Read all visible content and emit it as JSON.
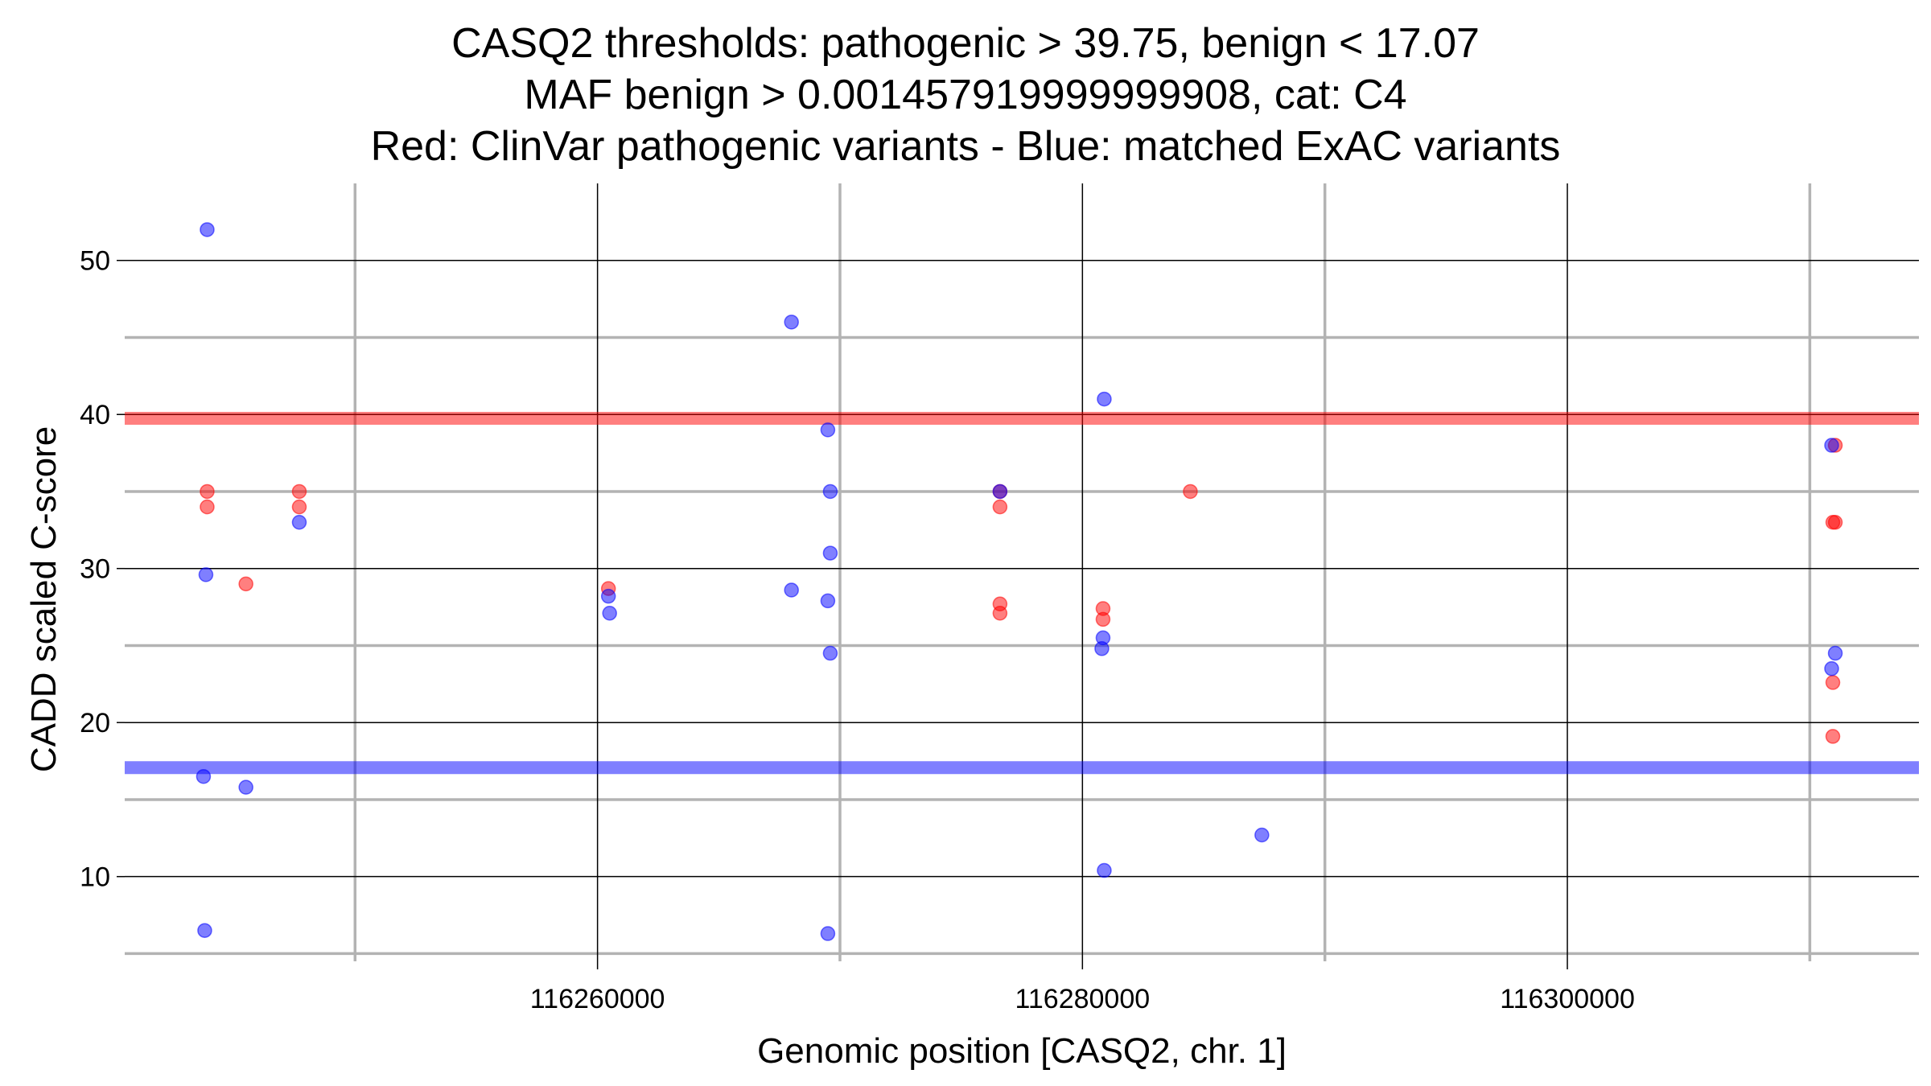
{
  "chart_data": {
    "type": "scatter",
    "title_lines": [
      "CASQ2 thresholds: pathogenic > 39.75, benign < 17.07",
      "MAF benign > 0.001457919999999908, cat: C4",
      "Red: ClinVar pathogenic variants - Blue: matched ExAC variants"
    ],
    "xlabel": "Genomic position [CASQ2, chr. 1]",
    "ylabel": "CADD scaled C-score",
    "xlim": [
      116240500,
      116314500
    ],
    "ylim": [
      4.5,
      55
    ],
    "x_major_ticks": [
      116260000,
      116280000,
      116300000
    ],
    "x_minor_ticks": [
      116250000,
      116270000,
      116290000,
      116310000
    ],
    "y_major_ticks": [
      10,
      20,
      30,
      40,
      50
    ],
    "y_minor_ticks": [
      5,
      15,
      25,
      35,
      45
    ],
    "x_tick_labels": [
      "116260000",
      "116280000",
      "116300000"
    ],
    "y_tick_labels": [
      "10",
      "20",
      "30",
      "40",
      "50"
    ],
    "thresholds": [
      {
        "name": "pathogenic",
        "value": 39.75,
        "color": "#ff0000"
      },
      {
        "name": "benign",
        "value": 17.07,
        "color": "#0000ff"
      }
    ],
    "colors": {
      "pathogenic": "#ff0000",
      "benign": "#0000ff",
      "major_grid": "#000000",
      "minor_grid": "#b3b3b3"
    },
    "series": [
      {
        "name": "ClinVar pathogenic variants",
        "color": "#ff0000",
        "points": [
          {
            "x": 116243900,
            "y": 35
          },
          {
            "x": 116243900,
            "y": 34
          },
          {
            "x": 116245500,
            "y": 29
          },
          {
            "x": 116247700,
            "y": 35
          },
          {
            "x": 116247700,
            "y": 34
          },
          {
            "x": 116260450,
            "y": 28.7
          },
          {
            "x": 116276600,
            "y": 35
          },
          {
            "x": 116276600,
            "y": 34
          },
          {
            "x": 116276600,
            "y": 27.7
          },
          {
            "x": 116276600,
            "y": 27.1
          },
          {
            "x": 116280850,
            "y": 27.4
          },
          {
            "x": 116280850,
            "y": 26.7
          },
          {
            "x": 116284450,
            "y": 35
          },
          {
            "x": 116311050,
            "y": 38
          },
          {
            "x": 116311050,
            "y": 33
          },
          {
            "x": 116310950,
            "y": 33
          },
          {
            "x": 116310950,
            "y": 22.6
          },
          {
            "x": 116310950,
            "y": 19.1
          }
        ]
      },
      {
        "name": "matched ExAC variants",
        "color": "#0000ff",
        "points": [
          {
            "x": 116243900,
            "y": 52
          },
          {
            "x": 116243850,
            "y": 29.6
          },
          {
            "x": 116243750,
            "y": 16.5
          },
          {
            "x": 116243800,
            "y": 6.5
          },
          {
            "x": 116245500,
            "y": 15.8
          },
          {
            "x": 116247700,
            "y": 33
          },
          {
            "x": 116260450,
            "y": 28.2
          },
          {
            "x": 116260500,
            "y": 27.1
          },
          {
            "x": 116268000,
            "y": 46
          },
          {
            "x": 116268000,
            "y": 28.6
          },
          {
            "x": 116269500,
            "y": 39
          },
          {
            "x": 116269600,
            "y": 35
          },
          {
            "x": 116269600,
            "y": 31
          },
          {
            "x": 116269500,
            "y": 27.9
          },
          {
            "x": 116269600,
            "y": 24.5
          },
          {
            "x": 116269500,
            "y": 6.3
          },
          {
            "x": 116276600,
            "y": 35
          },
          {
            "x": 116280900,
            "y": 41
          },
          {
            "x": 116280850,
            "y": 25.5
          },
          {
            "x": 116280800,
            "y": 24.8
          },
          {
            "x": 116280900,
            "y": 10.4
          },
          {
            "x": 116287400,
            "y": 12.7
          },
          {
            "x": 116310900,
            "y": 38
          },
          {
            "x": 116310900,
            "y": 23.5
          },
          {
            "x": 116311050,
            "y": 24.5
          }
        ]
      }
    ]
  }
}
